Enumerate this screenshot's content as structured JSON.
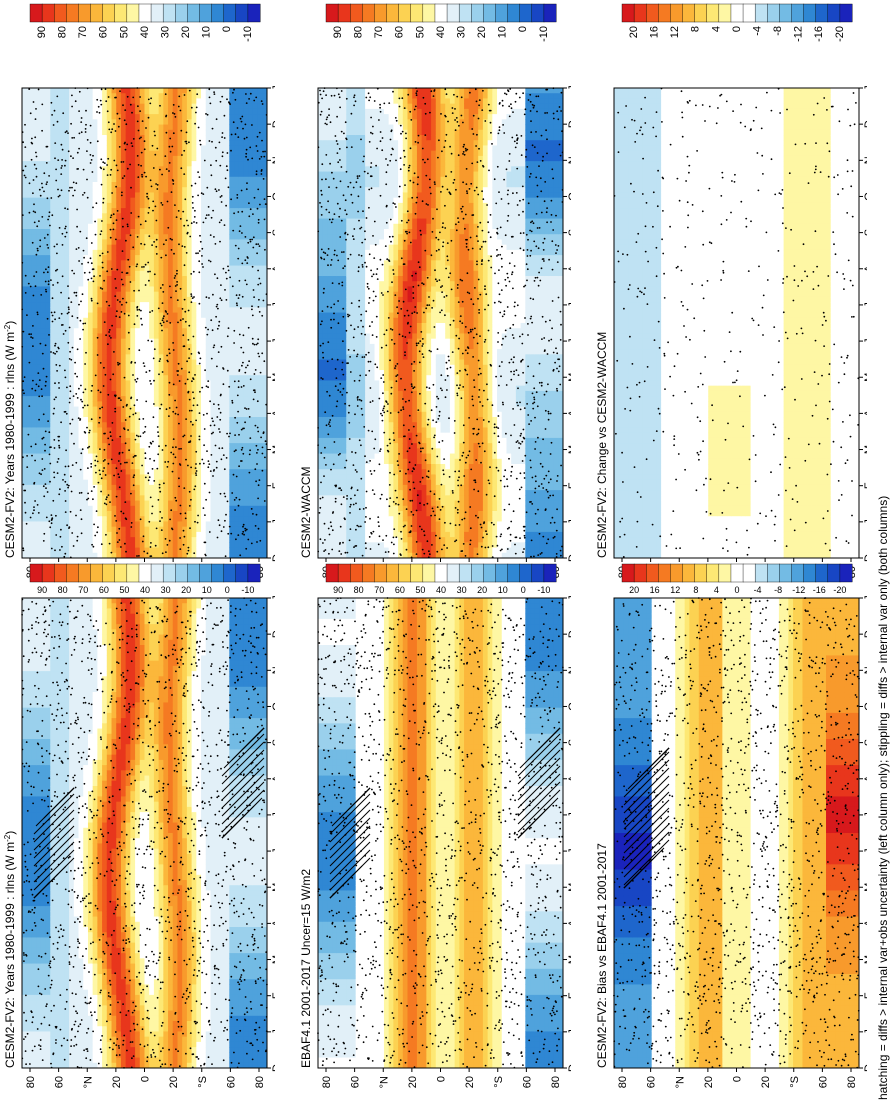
{
  "footnote": "hatching = diffs > internal var+obs uncertainty (left column only); stippling = diffs > internal var only (both columns)",
  "colormaps": {
    "abs": [
      "#d7191c",
      "#e8361c",
      "#f15a1e",
      "#f57a22",
      "#f89a2c",
      "#fbb73b",
      "#fcd252",
      "#fde874",
      "#fef7a4",
      "#ffffff",
      "#e2f0f8",
      "#bfe2f3",
      "#9ad0ec",
      "#73bbe4",
      "#4fa2dc",
      "#2f87d3",
      "#1e66cc",
      "#1846c4",
      "#1a23bb"
    ],
    "diff": [
      "#d7191c",
      "#e8361c",
      "#f15a1e",
      "#f57a22",
      "#f89a2c",
      "#fbb73b",
      "#fcd252",
      "#fde874",
      "#fef7a4",
      "#ffffff",
      "#ffffff",
      "#bfe2f3",
      "#9ad0ec",
      "#73bbe4",
      "#4fa2dc",
      "#2f87d3",
      "#1e66cc",
      "#1846c4",
      "#1a23bb"
    ]
  },
  "chart_data": [
    {
      "id": "panel-fv2-left",
      "type": "heatmap",
      "title": "CESM2-FV2: Years 1980-1999 : rlns (W m",
      "title_sup": "-2",
      "title_end": ")",
      "x_ticks": [
        "D",
        "J",
        "F",
        "M",
        "A",
        "M",
        "J",
        "J",
        "A",
        "S",
        "O",
        "N",
        "D",
        "J"
      ],
      "y_ticks": [
        "80",
        "60",
        "°N",
        "20",
        "0",
        "20",
        "°S",
        "60",
        "80"
      ],
      "value_range": [
        -10,
        95
      ],
      "months_profile": {
        "tropic_peak_month": 4,
        "shift": 0.7
      },
      "colormap": "abs",
      "hatching": "left",
      "stipple": "dense",
      "field": "abs",
      "seed": 3
    },
    {
      "id": "panel-fv2-right",
      "type": "heatmap",
      "title": "CESM2-FV2: Years 1980-1999 : rlns (W m",
      "title_sup": "-2",
      "title_end": ")",
      "x_ticks": [
        "D",
        "J",
        "F",
        "M",
        "A",
        "M",
        "J",
        "J",
        "A",
        "S",
        "O",
        "N",
        "D",
        "J"
      ],
      "y_ticks": [
        "80",
        "60",
        "°N",
        "20",
        "0",
        "20",
        "°S",
        "60",
        "80"
      ],
      "value_range": [
        -10,
        95
      ],
      "colormap": "abs",
      "hatching": "none",
      "stipple": "dense",
      "field": "abs2",
      "seed": 5
    },
    {
      "id": "panel-ebaf",
      "type": "heatmap",
      "title": "EBAF4.1 2001-2017 Uncer=15 W/m2",
      "title_sup": "",
      "title_end": "",
      "x_ticks": [
        "D",
        "J",
        "F",
        "M",
        "A",
        "M",
        "J",
        "J",
        "A",
        "S",
        "O",
        "N",
        "D",
        "J"
      ],
      "y_ticks": [
        "80",
        "60",
        "°N",
        "20",
        "0",
        "20",
        "°S",
        "60",
        "80"
      ],
      "value_range": [
        -10,
        95
      ],
      "colormap": "abs",
      "hatching": "left",
      "stipple": "dense",
      "field": "obs",
      "seed": 7
    },
    {
      "id": "panel-waccm",
      "type": "heatmap",
      "title": "CESM2-WACCM",
      "title_sup": "",
      "title_end": "",
      "x_ticks": [
        "D",
        "J",
        "F",
        "M",
        "A",
        "M",
        "J",
        "J",
        "A",
        "S",
        "O",
        "N",
        "D",
        "J"
      ],
      "y_ticks": [
        "80",
        "60",
        "°N",
        "20",
        "0",
        "20",
        "°S",
        "60",
        "80"
      ],
      "value_range": [
        -10,
        95
      ],
      "colormap": "abs",
      "hatching": "none",
      "stipple": "dense",
      "field": "abs3",
      "seed": 11
    },
    {
      "id": "panel-bias",
      "type": "heatmap",
      "title": "CESM2-FV2: Bias vs EBAF4.1 2001-2017",
      "title_sup": "",
      "title_end": "",
      "x_ticks": [
        "D",
        "J",
        "F",
        "M",
        "A",
        "M",
        "J",
        "J",
        "A",
        "S",
        "O",
        "N",
        "D",
        "J"
      ],
      "y_ticks": [
        "80",
        "60",
        "°N",
        "20",
        "0",
        "20",
        "°S",
        "60",
        "80"
      ],
      "value_range": [
        -22,
        22
      ],
      "colormap": "diff",
      "hatching": "bias",
      "stipple": "dense",
      "field": "bias",
      "seed": 13
    },
    {
      "id": "panel-change",
      "type": "heatmap",
      "title": "CESM2-FV2: Change vs CESM2-WACCM",
      "title_sup": "",
      "title_end": "",
      "x_ticks": [
        "D",
        "J",
        "F",
        "M",
        "A",
        "M",
        "J",
        "J",
        "A",
        "S",
        "O",
        "N",
        "D",
        "J"
      ],
      "y_ticks": [
        "80",
        "60",
        "°N",
        "20",
        "0",
        "20",
        "°S",
        "60",
        "80"
      ],
      "value_range": [
        -22,
        22
      ],
      "colormap": "diff",
      "hatching": "none",
      "stipple": "sparse",
      "field": "change",
      "seed": 17
    }
  ],
  "colorbars": [
    {
      "id": "cbar-abs-1",
      "labels": [
        "90",
        "80",
        "70",
        "60",
        "50",
        "40",
        "30",
        "20",
        "10",
        "0",
        "-10"
      ],
      "colormap": "abs"
    },
    {
      "id": "cbar-abs-2",
      "labels": [
        "90",
        "80",
        "70",
        "60",
        "50",
        "40",
        "30",
        "20",
        "10",
        "0",
        "-10"
      ],
      "colormap": "abs"
    },
    {
      "id": "cbar-abs-3",
      "labels": [
        "90",
        "80",
        "70",
        "60",
        "50",
        "40",
        "30",
        "20",
        "10",
        "0",
        "-10"
      ],
      "colormap": "abs"
    },
    {
      "id": "cbar-abs-4",
      "labels": [
        "90",
        "80",
        "70",
        "60",
        "50",
        "40",
        "30",
        "20",
        "10",
        "0",
        "-10"
      ],
      "colormap": "abs"
    },
    {
      "id": "cbar-diff-1",
      "labels": [
        "20",
        "16",
        "12",
        "8",
        "4",
        "0",
        "-4",
        "-8",
        "-12",
        "-16",
        "-20"
      ],
      "colormap": "diff"
    },
    {
      "id": "cbar-diff-2",
      "labels": [
        "20",
        "16",
        "12",
        "8",
        "4",
        "0",
        "-4",
        "-8",
        "-12",
        "-16",
        "-20"
      ],
      "colormap": "diff"
    }
  ]
}
